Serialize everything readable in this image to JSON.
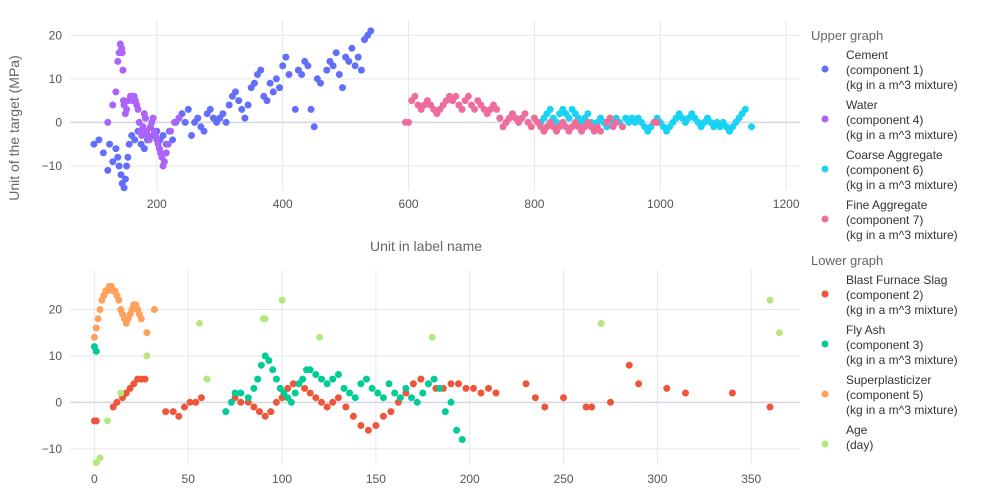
{
  "chart_data": [
    {
      "type": "scatter",
      "ylabel": "Unit of the target (MPa)",
      "xlabel": "Unit in label name",
      "xlim": [
        62,
        1222
      ],
      "ylim": [
        -15.5,
        23.5
      ],
      "xticks": [
        200,
        400,
        600,
        800,
        1000,
        1200
      ],
      "yticks": [
        -10,
        0,
        10,
        20
      ],
      "grid": true,
      "legend_group": "Upper graph",
      "series": [
        {
          "name": "Cement\n(component 1)\n(kg in a m^3 mixture)",
          "color": "#636efa",
          "x": [
            100,
            108,
            115,
            122,
            125,
            130,
            135,
            138,
            140,
            143,
            145,
            148,
            150,
            152,
            154,
            156,
            160,
            165,
            170,
            175,
            180,
            185,
            190,
            195,
            200,
            205,
            210,
            215,
            220,
            225,
            230,
            235,
            240,
            245,
            250,
            255,
            260,
            265,
            270,
            275,
            280,
            285,
            290,
            295,
            300,
            305,
            310,
            315,
            320,
            325,
            330,
            335,
            340,
            345,
            350,
            355,
            360,
            365,
            370,
            375,
            380,
            385,
            390,
            395,
            400,
            405,
            410,
            420,
            425,
            430,
            435,
            440,
            445,
            450,
            455,
            460,
            470,
            475,
            480,
            485,
            490,
            495,
            500,
            505,
            510,
            515,
            520,
            525,
            530,
            535,
            540
          ],
          "y": [
            -5,
            -4,
            -7,
            -11,
            -5,
            -9,
            -6,
            -8,
            -10,
            -12,
            -14,
            -15,
            -13,
            -10,
            -8,
            -5,
            -3,
            -4,
            -2,
            -5,
            -6,
            -4,
            -1,
            -3,
            -2,
            -4,
            -3,
            -5,
            -2,
            -4,
            0,
            1,
            2,
            0,
            3,
            -3,
            0,
            1,
            -1,
            -2,
            2,
            3,
            1,
            0,
            1,
            2,
            0,
            4,
            6,
            7,
            5,
            3,
            1,
            4,
            8,
            9,
            11,
            12,
            6,
            5,
            9,
            7,
            10,
            8,
            13,
            15,
            11,
            3,
            12,
            11,
            14,
            13,
            3,
            -1,
            10,
            9,
            12,
            14,
            13,
            16,
            11,
            8,
            15,
            14,
            17,
            13,
            15,
            12,
            19,
            20,
            21
          ]
        },
        {
          "name": "Water\n(component 4)\n(kg in a m^3 mixture)",
          "color": "#ab63fa",
          "x": [
            122,
            130,
            135,
            138,
            140,
            142,
            144,
            145,
            146,
            147,
            148,
            150,
            152,
            155,
            158,
            160,
            162,
            164,
            166,
            168,
            170,
            172,
            174,
            176,
            178,
            180,
            182,
            184,
            186,
            188,
            190,
            192,
            194,
            196,
            198,
            200,
            202,
            204,
            206,
            208,
            210,
            212,
            215,
            218,
            222,
            228,
            235
          ],
          "y": [
            0,
            4,
            7,
            14,
            16,
            18,
            17,
            16,
            12,
            5,
            4,
            2,
            3,
            5,
            6,
            6,
            5,
            6,
            5,
            4,
            3,
            0,
            -2,
            -3,
            -1,
            2,
            1,
            -2,
            -3,
            -4,
            -1,
            0,
            1,
            -2,
            -3,
            -4,
            -5,
            -6,
            -7,
            -8,
            -10,
            -9,
            -7,
            -5,
            -2,
            0,
            1
          ]
        },
        {
          "name": "Coarse Aggregate\n(component 6)\n(kg in a m^3 mixture)",
          "color": "#19d3f3",
          "x": [
            810,
            815,
            820,
            825,
            830,
            835,
            840,
            845,
            850,
            855,
            860,
            865,
            870,
            875,
            880,
            885,
            890,
            895,
            900,
            905,
            910,
            915,
            920,
            925,
            930,
            935,
            940,
            945,
            950,
            955,
            960,
            965,
            970,
            975,
            980,
            985,
            990,
            995,
            1000,
            1005,
            1010,
            1015,
            1020,
            1025,
            1030,
            1035,
            1040,
            1045,
            1050,
            1055,
            1060,
            1065,
            1070,
            1075,
            1080,
            1085,
            1090,
            1095,
            1100,
            1105,
            1110,
            1115,
            1120,
            1125,
            1130,
            1135,
            1145
          ],
          "y": [
            0,
            1,
            2,
            3,
            1,
            0,
            2,
            3,
            2,
            1,
            3,
            2,
            1,
            0,
            1,
            2,
            0,
            -1,
            0,
            1,
            0,
            -1,
            1,
            0,
            1,
            0,
            -1,
            1,
            0,
            1,
            0,
            1,
            0,
            -1,
            -2,
            -1,
            0,
            1,
            0,
            -1,
            -2,
            -1,
            0,
            1,
            2,
            1,
            0,
            1,
            2,
            1,
            0,
            -1,
            0,
            1,
            0,
            -1,
            0,
            -1,
            0,
            -1,
            -2,
            -1,
            0,
            1,
            2,
            3,
            -1
          ]
        },
        {
          "name": "Fine Aggregate\n(component 7)\n(kg in a m^3 mixture)",
          "color": "#ef6d9b",
          "x": [
            595,
            600,
            605,
            610,
            615,
            620,
            625,
            630,
            635,
            640,
            645,
            650,
            655,
            660,
            665,
            670,
            675,
            680,
            685,
            690,
            695,
            700,
            705,
            710,
            715,
            720,
            725,
            730,
            735,
            740,
            745,
            750,
            755,
            760,
            765,
            770,
            775,
            780,
            785,
            790,
            795,
            800,
            805,
            810,
            815,
            820,
            825,
            830,
            835,
            840,
            845,
            850,
            855,
            860,
            865,
            870,
            875,
            880,
            885,
            890,
            895,
            900,
            905,
            915,
            920,
            925,
            930,
            940,
            990,
            995
          ],
          "y": [
            0,
            0,
            5,
            6,
            4,
            3,
            4,
            5,
            4,
            3,
            2,
            3,
            4,
            5,
            6,
            5,
            6,
            4,
            3,
            5,
            6,
            4,
            3,
            5,
            4,
            3,
            2,
            3,
            4,
            3,
            1,
            -1,
            0,
            1,
            2,
            1,
            0,
            1,
            2,
            0,
            -1,
            1,
            0,
            -1,
            -2,
            -1,
            0,
            -1,
            -2,
            -1,
            0,
            -1,
            -2,
            -1,
            0,
            -1,
            -2,
            -1,
            0,
            -1,
            -2,
            -1,
            -2,
            0,
            1,
            -1,
            0,
            -1,
            0,
            0
          ]
        }
      ]
    },
    {
      "type": "scatter",
      "xlim": [
        -13,
        376
      ],
      "ylim": [
        -13.5,
        28.5
      ],
      "xticks": [
        0,
        50,
        100,
        150,
        200,
        250,
        300,
        350
      ],
      "yticks": [
        -10,
        0,
        10,
        20
      ],
      "grid": true,
      "legend_group": "Lower graph",
      "series": [
        {
          "name": "Blast Furnace Slag\n(component 2)\n(kg in a m^3 mixture)",
          "color": "#ef553b",
          "x": [
            0,
            1,
            10,
            12,
            15,
            17,
            19,
            21,
            23,
            25,
            27,
            38,
            42,
            45,
            48,
            51,
            54,
            57,
            75,
            78,
            82,
            85,
            88,
            91,
            94,
            97,
            100,
            103,
            106,
            109,
            112,
            115,
            118,
            121,
            124,
            127,
            130,
            134,
            138,
            142,
            146,
            150,
            154,
            158,
            162,
            166,
            170,
            174,
            178,
            182,
            186,
            190,
            194,
            198,
            202,
            206,
            210,
            214,
            230,
            235,
            240,
            250,
            262,
            265,
            275,
            285,
            290,
            305,
            315,
            340,
            360
          ],
          "y": [
            -4,
            -4,
            -1,
            0,
            1,
            2,
            3,
            4,
            5,
            5,
            5,
            -2,
            -2,
            -3,
            -1,
            0,
            0,
            1,
            1,
            0,
            0,
            -1,
            -2,
            -3,
            -2,
            0,
            1,
            3,
            4,
            4,
            3,
            2,
            1,
            0,
            -1,
            0,
            1,
            -1,
            -3,
            -5,
            -6,
            -5,
            -3,
            -2,
            0,
            2,
            4,
            5,
            4,
            3,
            3,
            4,
            4,
            3,
            3,
            2,
            3,
            2,
            4,
            1,
            -1,
            1,
            -1,
            -1,
            0,
            8,
            4,
            3,
            2,
            2,
            -1
          ]
        },
        {
          "name": "Fly Ash\n(component 3)\n(kg in a m^3 mixture)",
          "color": "#00cc96",
          "x": [
            0,
            1,
            70,
            73,
            75,
            78,
            82,
            85,
            87,
            89,
            91,
            93,
            95,
            97,
            99,
            101,
            103,
            105,
            107,
            109,
            111,
            113,
            115,
            118,
            121,
            124,
            127,
            130,
            133,
            136,
            139,
            142,
            145,
            148,
            151,
            154,
            157,
            160,
            163,
            166,
            169,
            172,
            175,
            178,
            181,
            184,
            187,
            190,
            193,
            196
          ],
          "y": [
            12,
            11,
            -2,
            0,
            2,
            2,
            1,
            3,
            5,
            8,
            10,
            9,
            7,
            5,
            3,
            2,
            1,
            0,
            2,
            4,
            5,
            7,
            7,
            6,
            5,
            4,
            5,
            6,
            3,
            2,
            1,
            4,
            5,
            3,
            2,
            1,
            4,
            2,
            1,
            3,
            1,
            0,
            2,
            4,
            5,
            3,
            -2,
            0,
            -6,
            -8
          ]
        },
        {
          "name": "Superplasticizer\n(component 5)\n(kg in a m^3 mixture)",
          "color": "#ffa15a",
          "x": [
            0,
            1,
            2,
            3,
            4,
            5,
            6,
            7,
            8,
            9,
            10,
            11,
            12,
            13,
            14,
            15,
            16,
            17,
            18,
            19,
            20,
            21,
            22,
            23,
            24,
            25,
            28,
            32
          ],
          "y": [
            14,
            16,
            18,
            20,
            22,
            23,
            24,
            24,
            25,
            25,
            24,
            24,
            23,
            22,
            20,
            19,
            18,
            17,
            18,
            19,
            20,
            21,
            21,
            20,
            19,
            18,
            15,
            20
          ]
        },
        {
          "name": "Age\n(day)",
          "color": "#b6e880",
          "x": [
            1,
            3,
            7,
            14,
            28,
            56,
            60,
            90,
            91,
            100,
            120,
            180,
            270,
            360,
            365
          ],
          "y": [
            -13,
            -12,
            -4,
            2,
            10,
            17,
            5,
            18,
            18,
            22,
            14,
            14,
            17,
            22,
            15
          ]
        }
      ]
    }
  ]
}
